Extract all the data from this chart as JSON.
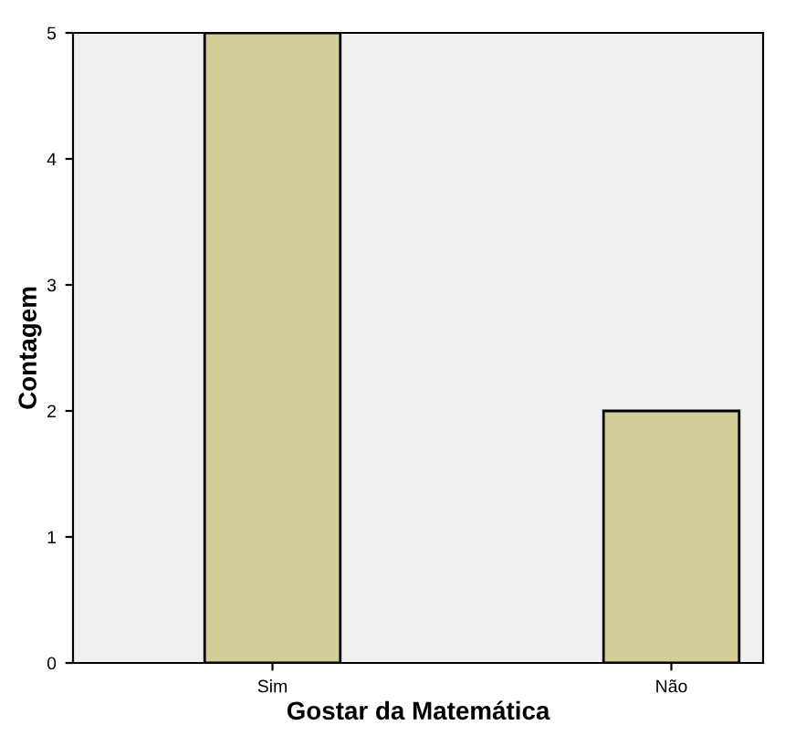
{
  "chart_data": {
    "type": "bar",
    "xlabel": "Gostar da Matemática",
    "ylabel": "Contagem",
    "categories": [
      "Sim",
      "Não"
    ],
    "values": [
      5,
      2
    ],
    "color": "#d3ce97",
    "ylim": [
      0,
      5
    ],
    "yticks": [
      0,
      1,
      2,
      3,
      4,
      5
    ],
    "grid": false
  }
}
